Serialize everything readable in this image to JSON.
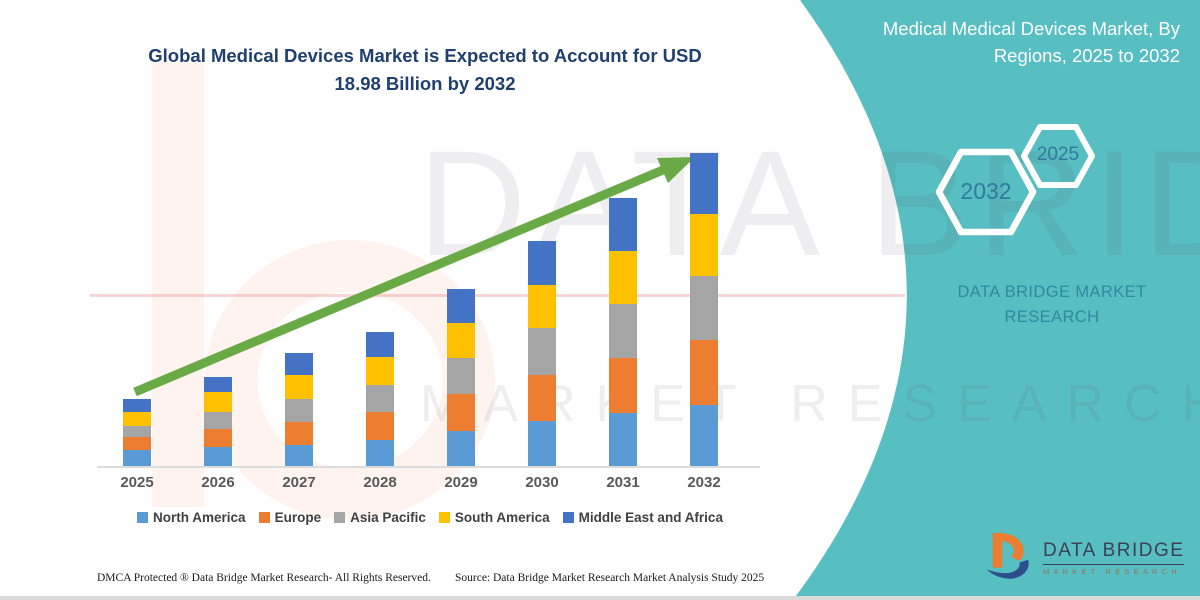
{
  "header": {
    "left_title": "Global Medical Devices Market is Expected to Account for USD 18.98 Billion by 2032",
    "right_title": "Medical Medical Devices Market, By Regions, 2025 to 2032"
  },
  "side_panel": {
    "hexagons": [
      {
        "label": "2032"
      },
      {
        "label": "2025"
      }
    ],
    "brand_text": "DATA BRIDGE MARKET RESEARCH"
  },
  "watermark": {
    "line1": "DATA BRIDGE",
    "line2": "MARKET RESEARCH"
  },
  "chart_data": {
    "type": "bar",
    "stacked": true,
    "unit": "USD Billion",
    "categories": [
      "2025",
      "2026",
      "2027",
      "2028",
      "2029",
      "2030",
      "2031",
      "2032"
    ],
    "series": [
      {
        "name": "North America",
        "color": "#5B9BD5",
        "values": [
          0.95,
          1.15,
          1.3,
          1.6,
          2.1,
          2.7,
          3.2,
          3.7
        ]
      },
      {
        "name": "Europe",
        "color": "#ED7D31",
        "values": [
          0.78,
          1.1,
          1.35,
          1.7,
          2.25,
          2.8,
          3.35,
          3.95
        ]
      },
      {
        "name": "Asia Pacific",
        "color": "#A5A5A5",
        "values": [
          0.72,
          1.05,
          1.42,
          1.62,
          2.2,
          2.85,
          3.3,
          3.85
        ]
      },
      {
        "name": "South America",
        "color": "#FFC000",
        "values": [
          0.85,
          1.22,
          1.45,
          1.68,
          2.15,
          2.65,
          3.2,
          3.8
        ]
      },
      {
        "name": "Middle East and Africa",
        "color": "#4472C4",
        "values": [
          0.76,
          0.88,
          1.33,
          1.53,
          2.03,
          2.64,
          3.2,
          3.68
        ]
      }
    ],
    "totals": [
      4.06,
      5.4,
      6.85,
      8.13,
      10.73,
      13.64,
      16.25,
      18.98
    ],
    "ylim": [
      0,
      19
    ],
    "gridlines": false,
    "axis_labels_shown": false,
    "legend_position": "bottom",
    "annotations": [
      "green upward trend arrow from 2025 to 2032"
    ]
  },
  "footer": {
    "dmca": "DMCA Protected ® Data Bridge Market Research-  All Rights Reserved.",
    "source": "Source: Data Bridge Market Research  Market Analysis Study 2025"
  },
  "logo": {
    "name": "DATA BRIDGE",
    "sub": "MARKET RESEARCH"
  },
  "colors": {
    "panel_teal": "#57bec1",
    "title_navy": "#1f3f6e",
    "arrow_green": "#6aaa46",
    "hexagon_text": "#2f7a9e",
    "brand_teal_text": "#2d8ba1",
    "axis_label_gray": "#595959"
  }
}
